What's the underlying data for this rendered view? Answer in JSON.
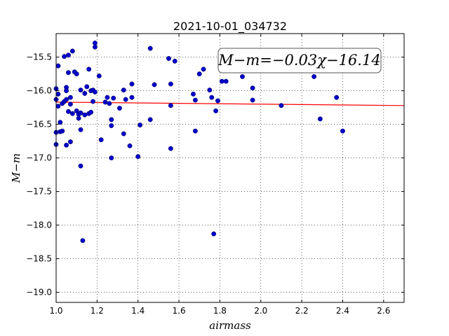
{
  "chart_data": {
    "type": "scatter",
    "title": "2021-10-01_034732",
    "xlabel": "airmass",
    "ylabel": "M−m",
    "xlim": [
      1.0,
      2.7
    ],
    "ylim": [
      -19.15,
      -15.15
    ],
    "y_inverted": true,
    "grid": true,
    "x_ticks": [
      "1.0",
      "1.2",
      "1.4",
      "1.6",
      "1.8",
      "2.0",
      "2.2",
      "2.4",
      "2.6"
    ],
    "y_ticks": [
      "−15.5",
      "−16.0",
      "−16.5",
      "−17.0",
      "−17.5",
      "−18.0",
      "−18.5",
      "−19.0"
    ],
    "annotation": "M−m=−0.03χ−16.14",
    "fit_line": {
      "slope": -0.03,
      "intercept": -16.14,
      "color": "#ff0000"
    },
    "point_color": "#0000cc",
    "points": [
      [
        1.0,
        -15.97
      ],
      [
        1.0,
        -16.13
      ],
      [
        1.01,
        -15.63
      ],
      [
        1.01,
        -16.05
      ],
      [
        1.01,
        -16.23
      ],
      [
        1.0,
        -16.62
      ],
      [
        1.0,
        -16.8
      ],
      [
        1.02,
        -16.47
      ],
      [
        1.02,
        -16.61
      ],
      [
        1.03,
        -16.6
      ],
      [
        1.03,
        -16.19
      ],
      [
        1.04,
        -16.16
      ],
      [
        1.04,
        -15.49
      ],
      [
        1.05,
        -15.95
      ],
      [
        1.05,
        -16.0
      ],
      [
        1.05,
        -16.13
      ],
      [
        1.06,
        -15.47
      ],
      [
        1.06,
        -15.73
      ],
      [
        1.06,
        -16.31
      ],
      [
        1.05,
        -16.81
      ],
      [
        1.07,
        -16.76
      ],
      [
        1.07,
        -16.1
      ],
      [
        1.07,
        -16.2
      ],
      [
        1.08,
        -16.34
      ],
      [
        1.08,
        -15.41
      ],
      [
        1.09,
        -15.72
      ],
      [
        1.1,
        -15.75
      ],
      [
        1.1,
        -16.3
      ],
      [
        1.11,
        -16.35
      ],
      [
        1.11,
        -16.41
      ],
      [
        1.12,
        -16.33
      ],
      [
        1.12,
        -16.58
      ],
      [
        1.12,
        -17.12
      ],
      [
        1.13,
        -18.23
      ],
      [
        1.12,
        -15.99
      ],
      [
        1.14,
        -16.04
      ],
      [
        1.14,
        -16.36
      ],
      [
        1.15,
        -15.94
      ],
      [
        1.16,
        -15.68
      ],
      [
        1.16,
        -16.34
      ],
      [
        1.17,
        -16.32
      ],
      [
        1.17,
        -16.0
      ],
      [
        1.18,
        -15.99
      ],
      [
        1.18,
        -16.16
      ],
      [
        1.19,
        -15.29
      ],
      [
        1.19,
        -15.35
      ],
      [
        1.19,
        -16.02
      ],
      [
        1.21,
        -15.78
      ],
      [
        1.22,
        -16.73
      ],
      [
        1.24,
        -16.17
      ],
      [
        1.25,
        -16.1
      ],
      [
        1.26,
        -16.19
      ],
      [
        1.27,
        -16.43
      ],
      [
        1.27,
        -16.52
      ],
      [
        1.27,
        -17.0
      ],
      [
        1.28,
        -16.11
      ],
      [
        1.31,
        -16.26
      ],
      [
        1.33,
        -15.99
      ],
      [
        1.33,
        -16.64
      ],
      [
        1.34,
        -16.13
      ],
      [
        1.36,
        -16.82
      ],
      [
        1.37,
        -16.1
      ],
      [
        1.37,
        -15.9
      ],
      [
        1.4,
        -16.98
      ],
      [
        1.41,
        -16.51
      ],
      [
        1.46,
        -16.43
      ],
      [
        1.46,
        -15.37
      ],
      [
        1.48,
        -15.91
      ],
      [
        1.55,
        -15.52
      ],
      [
        1.56,
        -15.9
      ],
      [
        1.56,
        -16.22
      ],
      [
        1.56,
        -16.86
      ],
      [
        1.58,
        -15.56
      ],
      [
        1.67,
        -16.05
      ],
      [
        1.68,
        -16.14
      ],
      [
        1.68,
        -16.6
      ],
      [
        1.7,
        -15.75
      ],
      [
        1.72,
        -15.68
      ],
      [
        1.75,
        -15.99
      ],
      [
        1.76,
        -16.1
      ],
      [
        1.77,
        -18.13
      ],
      [
        1.78,
        -16.3
      ],
      [
        1.79,
        -16.15
      ],
      [
        1.81,
        -15.86
      ],
      [
        1.83,
        -15.86
      ],
      [
        1.91,
        -15.79
      ],
      [
        1.96,
        -16.14
      ],
      [
        1.96,
        -15.96
      ],
      [
        2.1,
        -16.22
      ],
      [
        2.26,
        -15.79
      ],
      [
        2.29,
        -16.42
      ],
      [
        2.37,
        -16.1
      ],
      [
        2.4,
        -16.6
      ]
    ]
  }
}
